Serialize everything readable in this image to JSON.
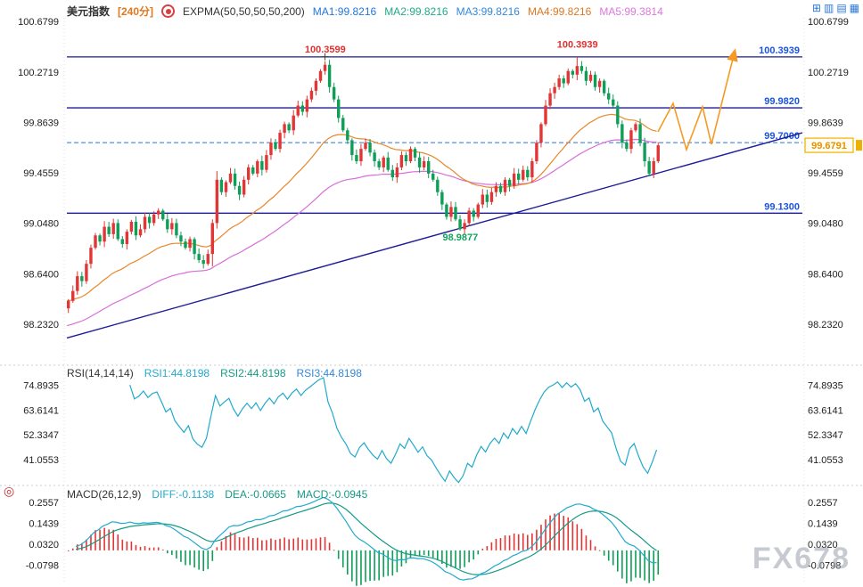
{
  "header": {
    "symbol": "美元指数",
    "period": "[240分]",
    "indicator": "EXPMA(50,50,50,50,200)",
    "ma_labels": [
      "MA1:99.8216",
      "MA2:99.8216",
      "MA3:99.8216",
      "MA4:99.8216",
      "MA5:99.3814"
    ]
  },
  "rsi_header": {
    "title": "RSI(14,14,14)",
    "r1": "RSI1:44.8198",
    "r2": "RSI2:44.8198",
    "r3": "RSI3:44.8198"
  },
  "macd_header": {
    "title": "MACD(26,12,9)",
    "diff": "DIFF:-0.1138",
    "dea": "DEA:-0.0665",
    "macd": "MACD:-0.0945"
  },
  "icons": {
    "grid": "⊞",
    "cols": "▥",
    "rows": "▤",
    "cells": "▦",
    "crosshair": "◎"
  },
  "watermark": "FX678",
  "colors": {
    "up": "#e23535",
    "down": "#0f9e57",
    "ema_fast": "#e8872a",
    "ema_slow": "#d86fd8",
    "level_line": "#1c1c96",
    "level_label": "#1a55e0",
    "dashed_line": "#2878d8",
    "trend": "#1c1c96",
    "rsi": "#22aacc",
    "diff": "#22aacc",
    "dea": "#159a86",
    "arrow": "#f59a23",
    "price_box": "#f0b000",
    "price_text": "#e89000",
    "annotation_red": "#e03030",
    "annotation_green": "#12a35a",
    "tick_text": "#222222"
  },
  "chart_data": {
    "type": "candlestick",
    "symbol": "美元指数",
    "period": "240分",
    "main": {
      "y_ticks": [
        "100.6799",
        "100.2719",
        "99.8639",
        "99.4559",
        "99.0480",
        "98.6400",
        "98.2320"
      ],
      "y_domain": [
        97.9,
        100.71
      ],
      "closes": [
        98.42,
        98.5,
        98.62,
        98.58,
        98.72,
        98.85,
        98.95,
        98.9,
        99.02,
        98.96,
        99.05,
        98.92,
        98.88,
        98.98,
        99.06,
        98.95,
        99.0,
        99.1,
        99.05,
        99.12,
        99.15,
        99.08,
        99.0,
        99.05,
        98.95,
        98.9,
        98.85,
        98.92,
        98.8,
        98.75,
        98.72,
        98.8,
        99.05,
        99.4,
        99.3,
        99.38,
        99.45,
        99.35,
        99.28,
        99.4,
        99.5,
        99.45,
        99.55,
        99.48,
        99.6,
        99.7,
        99.65,
        99.78,
        99.85,
        99.8,
        99.92,
        100.0,
        99.95,
        100.05,
        100.12,
        100.2,
        100.28,
        100.33,
        100.15,
        100.05,
        99.9,
        99.8,
        99.72,
        99.6,
        99.55,
        99.65,
        99.7,
        99.62,
        99.55,
        99.5,
        99.58,
        99.48,
        99.42,
        99.5,
        99.6,
        99.55,
        99.65,
        99.58,
        99.5,
        99.55,
        99.45,
        99.4,
        99.3,
        99.2,
        99.1,
        99.18,
        99.08,
        99.0,
        99.05,
        99.15,
        99.1,
        99.2,
        99.28,
        99.22,
        99.3,
        99.35,
        99.3,
        99.4,
        99.35,
        99.45,
        99.4,
        99.48,
        99.42,
        99.55,
        99.7,
        99.85,
        100.0,
        100.1,
        100.15,
        100.22,
        100.18,
        100.28,
        100.25,
        100.32,
        100.28,
        100.2,
        100.25,
        100.15,
        100.2,
        100.1,
        100.05,
        100.0,
        99.85,
        99.7,
        99.65,
        99.8,
        99.85,
        99.7,
        99.55,
        99.45,
        99.55,
        99.6791
      ],
      "special": {
        "peak1_idx": 57,
        "peak1_high": 100.3599,
        "peak2_idx": 113,
        "peak2_high": 100.3939,
        "low_idx": 87,
        "low_low": 98.9877,
        "spike_idx": 33,
        "spike_high": 99.47
      },
      "levels": [
        {
          "price": 100.3939,
          "label": "100.3939",
          "style": "solid"
        },
        {
          "price": 99.982,
          "label": "99.9820",
          "style": "solid"
        },
        {
          "price": 99.7,
          "label": "99.7000",
          "style": "dashed"
        },
        {
          "price": 99.13,
          "label": "99.1300",
          "style": "solid"
        }
      ],
      "trendline": {
        "price1": 98.12,
        "price2": 99.78
      },
      "current_price": "99.6791",
      "annotations": [
        {
          "text": "100.3599",
          "idx": 57,
          "price": 100.43,
          "color": "red"
        },
        {
          "text": "100.3939",
          "idx": 113,
          "price": 100.47,
          "color": "red"
        },
        {
          "text": "98.9877",
          "idx": 87,
          "price": 98.91,
          "color": "green"
        }
      ],
      "arrow_points": [
        [
          738,
          148
        ],
        [
          755,
          116
        ],
        [
          770,
          168
        ],
        [
          788,
          120
        ],
        [
          798,
          162
        ],
        [
          823,
          62
        ]
      ]
    },
    "rsi": {
      "y_ticks": [
        "74.8935",
        "63.6141",
        "52.3347",
        "41.0553"
      ],
      "periods": [
        14,
        14,
        14
      ],
      "last_values": [
        44.8198,
        44.8198,
        44.8198
      ]
    },
    "macd": {
      "y_ticks": [
        "0.2557",
        "0.1439",
        "0.0320",
        "-0.0798"
      ],
      "params": [
        26,
        12,
        9
      ],
      "diff": -0.1138,
      "dea": -0.0665,
      "macd": -0.0945
    }
  }
}
